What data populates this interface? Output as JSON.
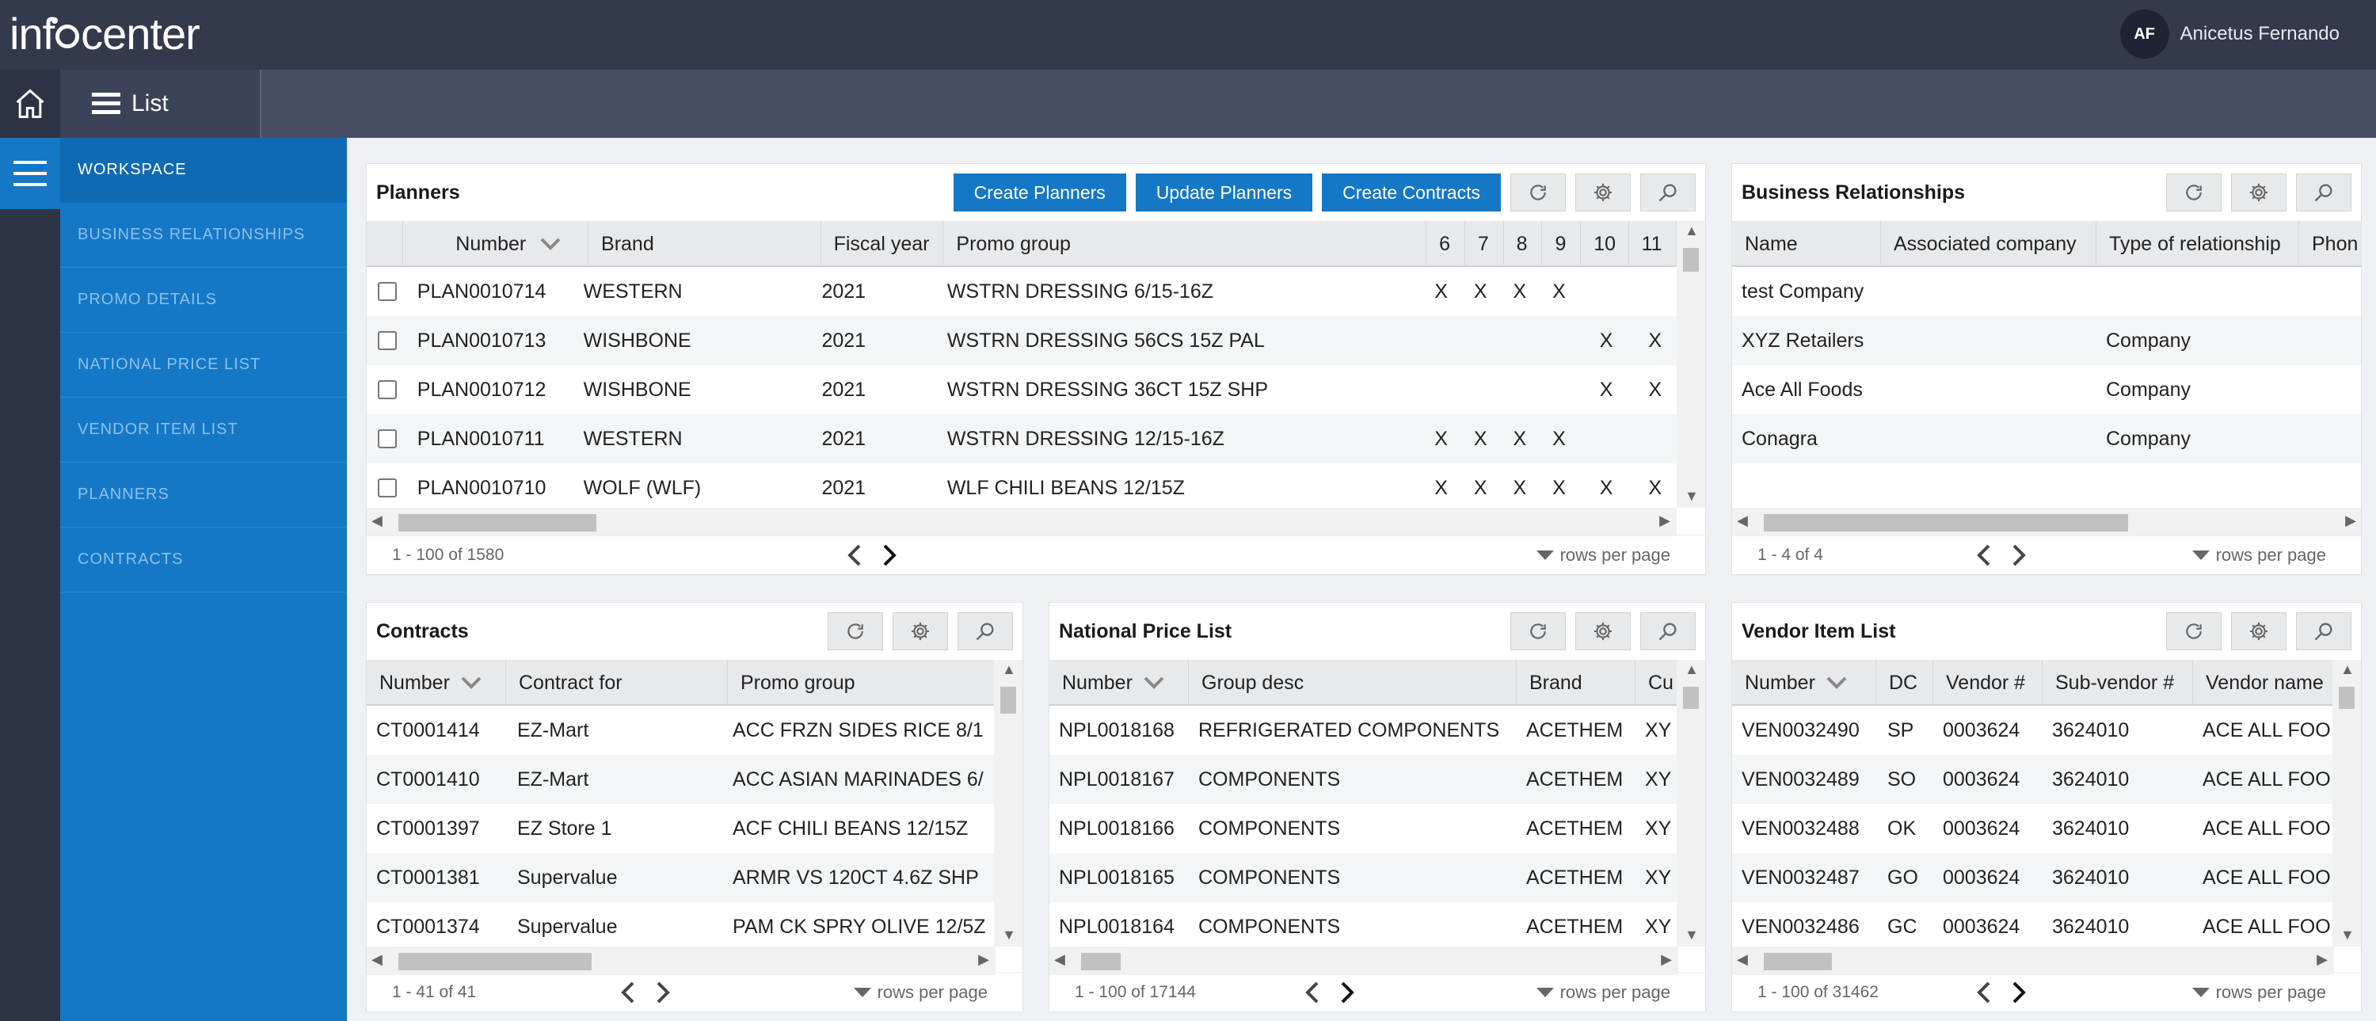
{
  "app": {
    "logo_text_1": "inf",
    "logo_text_2": "center"
  },
  "user": {
    "initials": "AF",
    "name": "Anicetus Fernando"
  },
  "header": {
    "list_label": "List"
  },
  "sidebar": {
    "items": [
      {
        "label": "WORKSPACE",
        "active": true
      },
      {
        "label": "BUSINESS RELATIONSHIPS"
      },
      {
        "label": "PROMO DETAILS"
      },
      {
        "label": "NATIONAL PRICE LIST"
      },
      {
        "label": "VENDOR ITEM LIST"
      },
      {
        "label": "PLANNERS"
      },
      {
        "label": "CONTRACTS"
      }
    ]
  },
  "planners": {
    "title": "Planners",
    "buttons": {
      "create": "Create Planners",
      "update": "Update Planners",
      "contracts": "Create Contracts"
    },
    "columns": [
      "Number",
      "Brand",
      "Fiscal year",
      "Promo group",
      "6",
      "7",
      "8",
      "9",
      "10",
      "11"
    ],
    "rows": [
      {
        "number": "PLAN0010714",
        "brand": "WESTERN",
        "year": "2021",
        "promo": "WSTRN DRESSING 6/15-16Z",
        "w6": "X",
        "w7": "X",
        "w8": "X",
        "w9": "X",
        "w10": "",
        "w11": ""
      },
      {
        "number": "PLAN0010713",
        "brand": "WISHBONE",
        "year": "2021",
        "promo": "WSTRN DRESSING 56CS 15Z PAL",
        "w6": "",
        "w7": "",
        "w8": "",
        "w9": "",
        "w10": "X",
        "w11": "X"
      },
      {
        "number": "PLAN0010712",
        "brand": "WISHBONE",
        "year": "2021",
        "promo": "WSTRN DRESSING 36CT 15Z SHP",
        "w6": "",
        "w7": "",
        "w8": "",
        "w9": "",
        "w10": "X",
        "w11": "X"
      },
      {
        "number": "PLAN0010711",
        "brand": "WESTERN",
        "year": "2021",
        "promo": "WSTRN DRESSING 12/15-16Z",
        "w6": "X",
        "w7": "X",
        "w8": "X",
        "w9": "X",
        "w10": "",
        "w11": ""
      },
      {
        "number": "PLAN0010710",
        "brand": "WOLF (WLF)",
        "year": "2021",
        "promo": "WLF CHILI BEANS 12/15Z",
        "w6": "X",
        "w7": "X",
        "w8": "X",
        "w9": "X",
        "w10": "X",
        "w11": "X"
      }
    ],
    "range": "1 - 100 of 1580",
    "rows_per_page": "rows per page"
  },
  "business_relationships": {
    "title": "Business Relationships",
    "columns": [
      "Name",
      "Associated company",
      "Type of relationship",
      "Phon"
    ],
    "rows": [
      {
        "name": "test Company",
        "assoc": "",
        "type": ""
      },
      {
        "name": "XYZ Retailers",
        "assoc": "",
        "type": "Company"
      },
      {
        "name": "Ace All Foods",
        "assoc": "",
        "type": "Company"
      },
      {
        "name": "Conagra",
        "assoc": "",
        "type": "Company"
      }
    ],
    "range": "1 - 4 of 4",
    "rows_per_page": "rows per page"
  },
  "contracts": {
    "title": "Contracts",
    "columns": [
      "Number",
      "Contract for",
      "Promo group"
    ],
    "rows": [
      {
        "number": "CT0001414",
        "for": "EZ-Mart",
        "promo": "ACC FRZN SIDES RICE 8/1"
      },
      {
        "number": "CT0001410",
        "for": "EZ-Mart",
        "promo": "ACC ASIAN MARINADES 6/"
      },
      {
        "number": "CT0001397",
        "for": "EZ Store 1",
        "promo": "ACF CHILI BEANS 12/15Z"
      },
      {
        "number": "CT0001381",
        "for": "Supervalue",
        "promo": "ARMR VS 120CT 4.6Z SHP"
      },
      {
        "number": "CT0001374",
        "for": "Supervalue",
        "promo": "PAM CK SPRY OLIVE 12/5Z"
      }
    ],
    "range": "1 - 41 of 41",
    "rows_per_page": "rows per page"
  },
  "national_price_list": {
    "title": "National Price List",
    "columns": [
      "Number",
      "Group desc",
      "Brand",
      "Cu"
    ],
    "rows": [
      {
        "number": "NPL0018168",
        "desc": "REFRIGERATED COMPONENTS",
        "brand": "ACETHEM",
        "cu": "XY"
      },
      {
        "number": "NPL0018167",
        "desc": "COMPONENTS",
        "brand": "ACETHEM",
        "cu": "XY"
      },
      {
        "number": "NPL0018166",
        "desc": "COMPONENTS",
        "brand": "ACETHEM",
        "cu": "XY"
      },
      {
        "number": "NPL0018165",
        "desc": "COMPONENTS",
        "brand": "ACETHEM",
        "cu": "XY"
      },
      {
        "number": "NPL0018164",
        "desc": "COMPONENTS",
        "brand": "ACETHEM",
        "cu": "XY"
      }
    ],
    "range": "1 - 100 of 17144",
    "rows_per_page": "rows per page"
  },
  "vendor_item_list": {
    "title": "Vendor Item List",
    "columns": [
      "Number",
      "DC",
      "Vendor #",
      "Sub-vendor #",
      "Vendor name"
    ],
    "rows": [
      {
        "number": "VEN0032490",
        "dc": "SP",
        "vendor": "0003624",
        "sub": "3624010",
        "name": "ACE ALL FOO"
      },
      {
        "number": "VEN0032489",
        "dc": "SO",
        "vendor": "0003624",
        "sub": "3624010",
        "name": "ACE ALL FOO"
      },
      {
        "number": "VEN0032488",
        "dc": "OK",
        "vendor": "0003624",
        "sub": "3624010",
        "name": "ACE ALL FOO"
      },
      {
        "number": "VEN0032487",
        "dc": "GO",
        "vendor": "0003624",
        "sub": "3624010",
        "name": "ACE ALL FOO"
      },
      {
        "number": "VEN0032486",
        "dc": "GC",
        "vendor": "0003624",
        "sub": "3624010",
        "name": "ACE ALL FOO"
      }
    ],
    "range": "1 - 100 of 31462",
    "rows_per_page": "rows per page"
  },
  "icons": {
    "home": "home-icon",
    "menu": "hamburger-icon",
    "refresh": "refresh-icon",
    "settings": "gear-icon",
    "search": "search-icon",
    "sort": "chevron-down-icon"
  },
  "colors": {
    "accent": "#1478c7",
    "topbar": "#323a4c",
    "secondbar": "#454e63"
  }
}
